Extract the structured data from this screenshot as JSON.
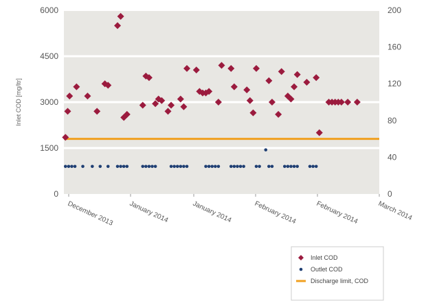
{
  "chart_data": {
    "type": "scatter",
    "title": "",
    "ylabel": "Inlet COD [mg/ltr]",
    "y2label": "",
    "ylim": [
      0,
      6000
    ],
    "y2lim": [
      0,
      200
    ],
    "yticks": [
      "6000",
      "4500",
      "3000",
      "1500",
      "0"
    ],
    "y2ticks": [
      "200",
      "160",
      "120",
      "80",
      "40",
      "0"
    ],
    "xticks": [
      "December 2013",
      "January 2014",
      "January 2014",
      "February 2014",
      "February 2014",
      "March 2014"
    ],
    "grid": true,
    "legend_position": "bottom-right",
    "series": [
      {
        "name": "Inlet COD",
        "marker": "diamond",
        "color": "#9b1b3e",
        "x": [
          0.5,
          1.2,
          1.8,
          4,
          7.5,
          10.5,
          13,
          14,
          17,
          18,
          19,
          20,
          25,
          26,
          27,
          29,
          30,
          31,
          33,
          34,
          37,
          38,
          39,
          42,
          43,
          44,
          45,
          46,
          49,
          50,
          53,
          54,
          58,
          59,
          60,
          61,
          65,
          66,
          68,
          69,
          71,
          72,
          73,
          74,
          77,
          80,
          81,
          84,
          85,
          86,
          87,
          88,
          90,
          93
        ],
        "y": [
          1850,
          2700,
          3200,
          3500,
          3200,
          2700,
          3600,
          3550,
          5500,
          5800,
          2500,
          2600,
          2900,
          3850,
          3800,
          2950,
          3100,
          3050,
          2700,
          2900,
          3100,
          2850,
          4100,
          4050,
          3350,
          3300,
          3300,
          3350,
          3000,
          4200,
          4100,
          3500,
          3400,
          3050,
          2650,
          4100,
          3700,
          3000,
          2600,
          4000,
          3200,
          3100,
          3500,
          3900,
          3650,
          3800,
          2000,
          3000,
          3000,
          3000,
          3000,
          3000,
          3000,
          3000
        ]
      },
      {
        "name": "Outlet COD",
        "marker": "circle",
        "color": "#1f3f73",
        "x": [
          0.5,
          1.5,
          2.5,
          3.5,
          6,
          9,
          11.5,
          14,
          17,
          18,
          19,
          20,
          25,
          26,
          27,
          28,
          29,
          34,
          35,
          36,
          37,
          38,
          39,
          45,
          46,
          47,
          48,
          49,
          53,
          54,
          55,
          56,
          57,
          61,
          62,
          64,
          65,
          66,
          70,
          71,
          72,
          73,
          74,
          78,
          79,
          80
        ],
        "y": [
          30,
          30,
          30,
          30,
          30,
          30,
          30,
          30,
          30,
          30,
          30,
          30,
          30,
          30,
          30,
          30,
          30,
          30,
          30,
          30,
          30,
          30,
          30,
          30,
          30,
          30,
          30,
          30,
          30,
          30,
          30,
          30,
          30,
          30,
          30,
          48,
          30,
          30,
          30,
          30,
          30,
          30,
          30,
          30,
          30,
          30
        ],
        "axis": "right"
      },
      {
        "name": "Discharge limit, COD",
        "type": "line",
        "color": "#f0a020",
        "y": 1800
      }
    ]
  }
}
